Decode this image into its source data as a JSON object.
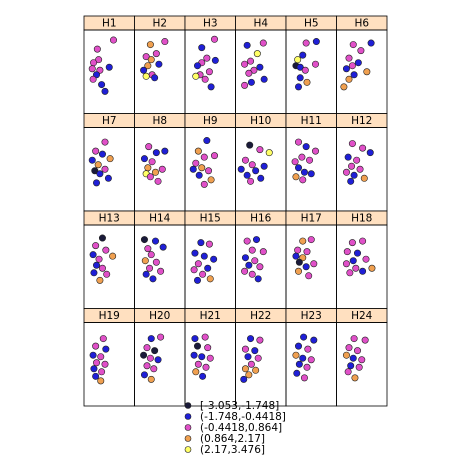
{
  "chart_data": {
    "type": "scatter",
    "panels": [
      "H1",
      "H2",
      "H3",
      "H4",
      "H5",
      "H6",
      "H7",
      "H8",
      "H9",
      "H10",
      "H11",
      "H12",
      "H13",
      "H14",
      "H15",
      "H16",
      "H17",
      "H18",
      "H19",
      "H20",
      "H21",
      "H22",
      "H23",
      "H24"
    ],
    "xlim": [
      0,
      1
    ],
    "ylim": [
      0,
      1
    ],
    "legend": {
      "placement": "bottom",
      "entries": [
        {
          "label": "[-3.053,-1.748]",
          "color": "#1a1a3a"
        },
        {
          "label": "(-1.748,-0.4418]",
          "color": "#1f1fd6"
        },
        {
          "label": "(-0.4418,0.864]",
          "color": "#e050c8"
        },
        {
          "label": "(0.864,2.17]",
          "color": "#f0a050"
        },
        {
          "label": "(2.17,3.476]",
          "color": "#ffff66"
        }
      ]
    },
    "strip_color": "#ffe0c0",
    "series_by_panel": {
      "H1": [
        [
          0.22,
          0.8,
          2
        ],
        [
          0.6,
          0.92,
          2
        ],
        [
          0.25,
          0.66,
          2
        ],
        [
          0.13,
          0.62,
          2
        ],
        [
          0.1,
          0.54,
          2
        ],
        [
          0.28,
          0.52,
          2
        ],
        [
          0.2,
          0.46,
          1
        ],
        [
          0.5,
          0.56,
          1
        ],
        [
          0.12,
          0.4,
          2
        ],
        [
          0.32,
          0.33,
          1
        ],
        [
          0.4,
          0.24,
          1
        ]
      ],
      "H2": [
        [
          0.28,
          0.86,
          3
        ],
        [
          0.42,
          0.74,
          2
        ],
        [
          0.62,
          0.9,
          2
        ],
        [
          0.18,
          0.7,
          2
        ],
        [
          0.3,
          0.66,
          3
        ],
        [
          0.22,
          0.58,
          3
        ],
        [
          0.12,
          0.52,
          1
        ],
        [
          0.48,
          0.6,
          1
        ],
        [
          0.32,
          0.46,
          2
        ],
        [
          0.18,
          0.44,
          4
        ],
        [
          0.38,
          0.42,
          1
        ]
      ],
      "H3": [
        [
          0.6,
          0.93,
          2
        ],
        [
          0.3,
          0.82,
          1
        ],
        [
          0.42,
          0.68,
          2
        ],
        [
          0.3,
          0.62,
          2
        ],
        [
          0.2,
          0.58,
          1
        ],
        [
          0.62,
          0.65,
          1
        ],
        [
          0.48,
          0.5,
          2
        ],
        [
          0.26,
          0.46,
          2
        ],
        [
          0.38,
          0.4,
          2
        ],
        [
          0.16,
          0.44,
          4
        ],
        [
          0.52,
          0.3,
          1
        ]
      ],
      "H4": [
        [
          0.18,
          0.85,
          1
        ],
        [
          0.42,
          0.74,
          4
        ],
        [
          0.56,
          0.88,
          2
        ],
        [
          0.26,
          0.64,
          2
        ],
        [
          0.12,
          0.6,
          2
        ],
        [
          0.34,
          0.52,
          2
        ],
        [
          0.22,
          0.48,
          2
        ],
        [
          0.48,
          0.56,
          1
        ],
        [
          0.58,
          0.4,
          1
        ],
        [
          0.28,
          0.36,
          1
        ],
        [
          0.12,
          0.32,
          2
        ]
      ],
      "H5": [
        [
          0.38,
          0.88,
          2
        ],
        [
          0.62,
          0.9,
          1
        ],
        [
          0.3,
          0.72,
          1
        ],
        [
          0.18,
          0.66,
          4
        ],
        [
          0.14,
          0.58,
          0
        ],
        [
          0.24,
          0.56,
          1
        ],
        [
          0.36,
          0.52,
          2
        ],
        [
          0.6,
          0.6,
          2
        ],
        [
          0.24,
          0.42,
          1
        ],
        [
          0.4,
          0.36,
          3
        ],
        [
          0.2,
          0.3,
          1
        ]
      ],
      "H6": [
        [
          0.3,
          0.86,
          2
        ],
        [
          0.48,
          0.78,
          2
        ],
        [
          0.72,
          0.88,
          1
        ],
        [
          0.2,
          0.68,
          2
        ],
        [
          0.28,
          0.58,
          2
        ],
        [
          0.42,
          0.62,
          1
        ],
        [
          0.14,
          0.54,
          1
        ],
        [
          0.62,
          0.5,
          3
        ],
        [
          0.32,
          0.46,
          1
        ],
        [
          0.2,
          0.4,
          3
        ],
        [
          0.08,
          0.3,
          3
        ]
      ],
      "H7": [
        [
          0.4,
          0.86,
          2
        ],
        [
          0.18,
          0.74,
          2
        ],
        [
          0.34,
          0.7,
          1
        ],
        [
          0.1,
          0.62,
          1
        ],
        [
          0.52,
          0.64,
          3
        ],
        [
          0.24,
          0.56,
          3
        ],
        [
          0.16,
          0.48,
          0
        ],
        [
          0.4,
          0.5,
          2
        ],
        [
          0.28,
          0.44,
          1
        ],
        [
          0.48,
          0.38,
          1
        ],
        [
          0.2,
          0.32,
          1
        ]
      ],
      "H8": [
        [
          0.24,
          0.8,
          2
        ],
        [
          0.42,
          0.72,
          1
        ],
        [
          0.62,
          0.74,
          1
        ],
        [
          0.14,
          0.64,
          1
        ],
        [
          0.32,
          0.6,
          2
        ],
        [
          0.22,
          0.52,
          3
        ],
        [
          0.18,
          0.44,
          4
        ],
        [
          0.4,
          0.46,
          3
        ],
        [
          0.28,
          0.4,
          2
        ],
        [
          0.56,
          0.5,
          2
        ],
        [
          0.46,
          0.34,
          2
        ]
      ],
      "H9": [
        [
          0.42,
          0.88,
          1
        ],
        [
          0.22,
          0.74,
          3
        ],
        [
          0.36,
          0.66,
          2
        ],
        [
          0.6,
          0.68,
          2
        ],
        [
          0.16,
          0.58,
          2
        ],
        [
          0.3,
          0.52,
          3
        ],
        [
          0.1,
          0.5,
          1
        ],
        [
          0.46,
          0.48,
          2
        ],
        [
          0.24,
          0.42,
          1
        ],
        [
          0.52,
          0.36,
          3
        ],
        [
          0.36,
          0.3,
          2
        ]
      ],
      "H10": [
        [
          0.24,
          0.82,
          0
        ],
        [
          0.48,
          0.76,
          2
        ],
        [
          0.14,
          0.62,
          2
        ],
        [
          0.3,
          0.56,
          2
        ],
        [
          0.04,
          0.5,
          1
        ],
        [
          0.18,
          0.42,
          1
        ],
        [
          0.38,
          0.48,
          1
        ],
        [
          0.58,
          0.54,
          1
        ],
        [
          0.5,
          0.38,
          1
        ],
        [
          0.7,
          0.72,
          4
        ],
        [
          0.26,
          0.34,
          2
        ]
      ],
      "H11": [
        [
          0.2,
          0.86,
          2
        ],
        [
          0.38,
          0.8,
          1
        ],
        [
          0.6,
          0.74,
          2
        ],
        [
          0.28,
          0.66,
          2
        ],
        [
          0.12,
          0.6,
          2
        ],
        [
          0.46,
          0.62,
          2
        ],
        [
          0.2,
          0.52,
          1
        ],
        [
          0.34,
          0.46,
          1
        ],
        [
          0.14,
          0.4,
          3
        ],
        [
          0.3,
          0.36,
          2
        ],
        [
          0.5,
          0.44,
          1
        ]
      ],
      "H12": [
        [
          0.28,
          0.84,
          2
        ],
        [
          0.52,
          0.78,
          2
        ],
        [
          0.7,
          0.72,
          1
        ],
        [
          0.18,
          0.66,
          1
        ],
        [
          0.38,
          0.62,
          2
        ],
        [
          0.26,
          0.54,
          2
        ],
        [
          0.14,
          0.46,
          2
        ],
        [
          0.46,
          0.5,
          2
        ],
        [
          0.32,
          0.42,
          1
        ],
        [
          0.56,
          0.38,
          3
        ],
        [
          0.24,
          0.34,
          1
        ]
      ],
      "H13": [
        [
          0.34,
          0.88,
          0
        ],
        [
          0.18,
          0.78,
          2
        ],
        [
          0.42,
          0.72,
          2
        ],
        [
          0.12,
          0.66,
          1
        ],
        [
          0.26,
          0.6,
          2
        ],
        [
          0.58,
          0.64,
          3
        ],
        [
          0.2,
          0.52,
          1
        ],
        [
          0.34,
          0.48,
          2
        ],
        [
          0.14,
          0.42,
          1
        ],
        [
          0.44,
          0.4,
          2
        ],
        [
          0.28,
          0.32,
          3
        ]
      ],
      "H14": [
        [
          0.14,
          0.86,
          0
        ],
        [
          0.4,
          0.84,
          1
        ],
        [
          0.22,
          0.74,
          2
        ],
        [
          0.58,
          0.76,
          1
        ],
        [
          0.3,
          0.66,
          2
        ],
        [
          0.16,
          0.58,
          3
        ],
        [
          0.42,
          0.56,
          2
        ],
        [
          0.26,
          0.48,
          2
        ],
        [
          0.52,
          0.44,
          2
        ],
        [
          0.18,
          0.4,
          1
        ],
        [
          0.34,
          0.34,
          1
        ]
      ],
      "H15": [
        [
          0.28,
          0.82,
          1
        ],
        [
          0.48,
          0.8,
          2
        ],
        [
          0.14,
          0.68,
          1
        ],
        [
          0.36,
          0.64,
          1
        ],
        [
          0.58,
          0.6,
          1
        ],
        [
          0.22,
          0.54,
          2
        ],
        [
          0.44,
          0.48,
          1
        ],
        [
          0.12,
          0.46,
          2
        ],
        [
          0.32,
          0.4,
          2
        ],
        [
          0.5,
          0.34,
          3
        ],
        [
          0.2,
          0.32,
          1
        ]
      ],
      "H16": [
        [
          0.18,
          0.84,
          2
        ],
        [
          0.4,
          0.86,
          1
        ],
        [
          0.3,
          0.72,
          2
        ],
        [
          0.56,
          0.7,
          2
        ],
        [
          0.14,
          0.62,
          1
        ],
        [
          0.36,
          0.58,
          2
        ],
        [
          0.22,
          0.52,
          1
        ],
        [
          0.48,
          0.5,
          2
        ],
        [
          0.12,
          0.44,
          2
        ],
        [
          0.3,
          0.4,
          2
        ],
        [
          0.44,
          0.34,
          1
        ]
      ],
      "H17": [
        [
          0.3,
          0.84,
          3
        ],
        [
          0.5,
          0.86,
          2
        ],
        [
          0.18,
          0.72,
          2
        ],
        [
          0.4,
          0.7,
          2
        ],
        [
          0.14,
          0.64,
          1
        ],
        [
          0.3,
          0.62,
          3
        ],
        [
          0.22,
          0.56,
          0
        ],
        [
          0.38,
          0.5,
          1
        ],
        [
          0.56,
          0.54,
          2
        ],
        [
          0.2,
          0.44,
          3
        ],
        [
          0.44,
          0.38,
          2
        ]
      ],
      "H18": [
        [
          0.28,
          0.82,
          2
        ],
        [
          0.52,
          0.84,
          2
        ],
        [
          0.16,
          0.7,
          2
        ],
        [
          0.4,
          0.68,
          1
        ],
        [
          0.3,
          0.58,
          1
        ],
        [
          0.6,
          0.6,
          2
        ],
        [
          0.14,
          0.54,
          2
        ],
        [
          0.36,
          0.48,
          2
        ],
        [
          0.22,
          0.42,
          2
        ],
        [
          0.52,
          0.44,
          1
        ],
        [
          0.74,
          0.48,
          3
        ]
      ],
      "H19": [
        [
          0.36,
          0.84,
          2
        ],
        [
          0.18,
          0.74,
          2
        ],
        [
          0.42,
          0.7,
          1
        ],
        [
          0.12,
          0.62,
          1
        ],
        [
          0.3,
          0.6,
          2
        ],
        [
          0.2,
          0.52,
          2
        ],
        [
          0.4,
          0.5,
          2
        ],
        [
          0.14,
          0.44,
          1
        ],
        [
          0.32,
          0.4,
          2
        ],
        [
          0.18,
          0.34,
          1
        ],
        [
          0.3,
          0.28,
          3
        ]
      ],
      "H20": [
        [
          0.3,
          0.84,
          1
        ],
        [
          0.52,
          0.86,
          2
        ],
        [
          0.2,
          0.72,
          2
        ],
        [
          0.38,
          0.68,
          0
        ],
        [
          0.12,
          0.62,
          0
        ],
        [
          0.28,
          0.58,
          2
        ],
        [
          0.46,
          0.56,
          1
        ],
        [
          0.2,
          0.48,
          2
        ],
        [
          0.36,
          0.44,
          2
        ],
        [
          0.14,
          0.36,
          1
        ],
        [
          0.3,
          0.3,
          3
        ]
      ],
      "H21": [
        [
          0.14,
          0.84,
          1
        ],
        [
          0.38,
          0.86,
          2
        ],
        [
          0.2,
          0.74,
          0
        ],
        [
          0.44,
          0.72,
          2
        ],
        [
          0.12,
          0.62,
          1
        ],
        [
          0.3,
          0.6,
          1
        ],
        [
          0.5,
          0.58,
          2
        ],
        [
          0.22,
          0.5,
          2
        ],
        [
          0.4,
          0.46,
          2
        ],
        [
          0.16,
          0.4,
          3
        ],
        [
          0.32,
          0.34,
          1
        ]
      ],
      "H22": [
        [
          0.26,
          0.84,
          1
        ],
        [
          0.48,
          0.82,
          2
        ],
        [
          0.14,
          0.7,
          2
        ],
        [
          0.36,
          0.68,
          1
        ],
        [
          0.2,
          0.6,
          1
        ],
        [
          0.44,
          0.58,
          2
        ],
        [
          0.28,
          0.5,
          2
        ],
        [
          0.14,
          0.44,
          3
        ],
        [
          0.38,
          0.42,
          3
        ],
        [
          0.22,
          0.36,
          3
        ],
        [
          0.1,
          0.3,
          1
        ]
      ],
      "H23": [
        [
          0.32,
          0.86,
          1
        ],
        [
          0.56,
          0.82,
          1
        ],
        [
          0.2,
          0.74,
          1
        ],
        [
          0.42,
          0.7,
          2
        ],
        [
          0.14,
          0.62,
          3
        ],
        [
          0.3,
          0.58,
          1
        ],
        [
          0.5,
          0.56,
          2
        ],
        [
          0.22,
          0.5,
          1
        ],
        [
          0.4,
          0.46,
          2
        ],
        [
          0.16,
          0.38,
          1
        ],
        [
          0.34,
          0.32,
          2
        ]
      ],
      "H24": [
        [
          0.32,
          0.84,
          2
        ],
        [
          0.58,
          0.82,
          2
        ],
        [
          0.2,
          0.72,
          2
        ],
        [
          0.4,
          0.68,
          2
        ],
        [
          0.14,
          0.62,
          3
        ],
        [
          0.3,
          0.58,
          1
        ],
        [
          0.5,
          0.56,
          2
        ],
        [
          0.24,
          0.48,
          1
        ],
        [
          0.44,
          0.46,
          2
        ],
        [
          0.18,
          0.4,
          2
        ],
        [
          0.34,
          0.32,
          3
        ]
      ]
    }
  }
}
